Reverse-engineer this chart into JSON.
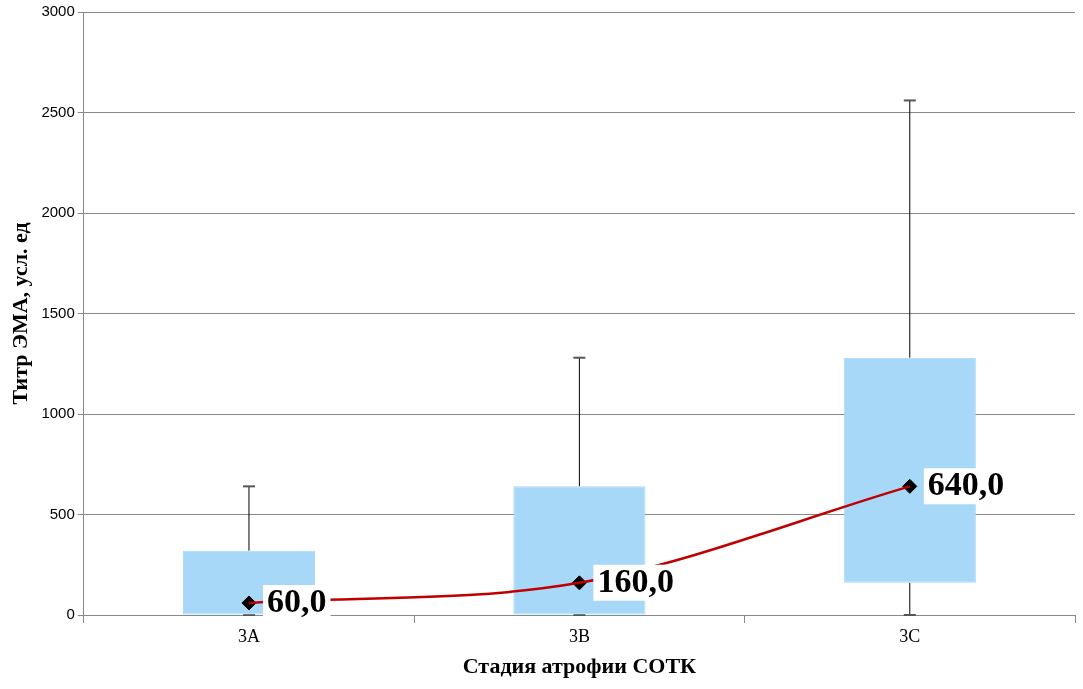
{
  "chart_data": {
    "type": "box",
    "xlabel": "Стадия атрофии СОТК",
    "ylabel": "Титр ЭМА, усл. ед",
    "categories": [
      "3A",
      "3B",
      "3C"
    ],
    "ylim": [
      0,
      3000
    ],
    "yticks": [
      0,
      500,
      1000,
      1500,
      2000,
      2500,
      3000
    ],
    "grid": "y",
    "legend": false,
    "series": [
      {
        "color": "#a8d8f8",
        "marker": "diamond",
        "boxes": [
          {
            "low": 0,
            "q1": 0,
            "median": 60,
            "q3": 320,
            "high": 640
          },
          {
            "low": 0,
            "q1": 0,
            "median": 160,
            "q3": 640,
            "high": 1280
          },
          {
            "low": 0,
            "q1": 160,
            "median": 640,
            "q3": 1280,
            "high": 2560
          }
        ],
        "value_labels": [
          "60,0",
          "160,0",
          "640,0"
        ]
      },
      {
        "type": "line",
        "color": "#c00000",
        "x": [
          "3A",
          "3B",
          "3C"
        ],
        "values": [
          60,
          160,
          640
        ]
      }
    ]
  }
}
